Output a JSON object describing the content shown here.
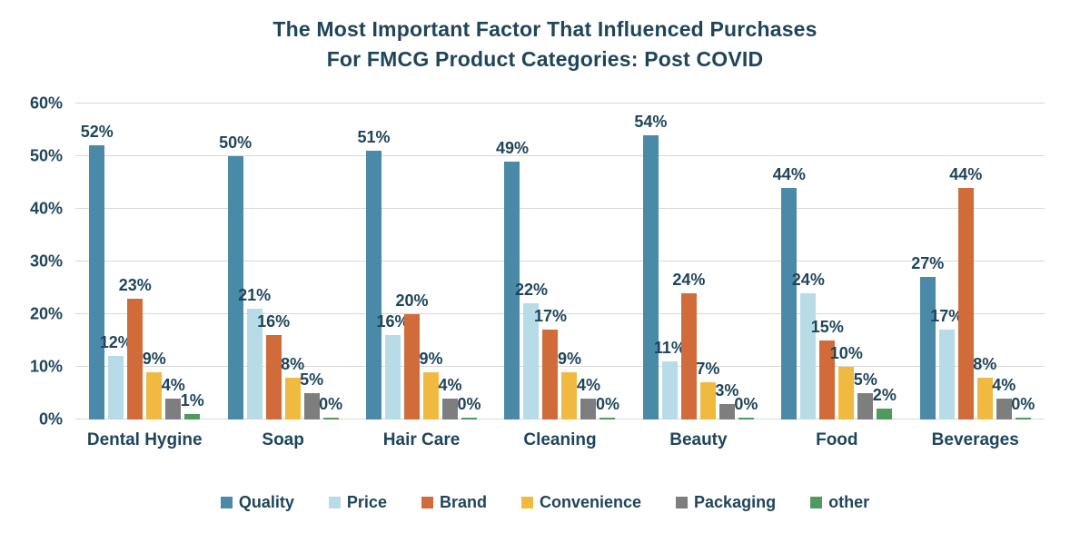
{
  "title": {
    "line1": "The Most Important Factor That Influenced Purchases",
    "line2": "For FMCG Product Categories: Post COVID"
  },
  "colors": {
    "text": "#1F455A",
    "gridline": "#D8D8D8",
    "background": "#FFFFFF"
  },
  "chart_data": {
    "type": "bar",
    "title": "The Most Important Factor That Influenced Purchases For FMCG Product Categories: Post COVID",
    "categories": [
      "Dental Hygine",
      "Soap",
      "Hair Care",
      "Cleaning",
      "Beauty",
      "Food",
      "Beverages"
    ],
    "series": [
      {
        "name": "Quality",
        "color": "#4A89A8",
        "values": [
          52,
          50,
          51,
          49,
          54,
          44,
          27
        ]
      },
      {
        "name": "Price",
        "color": "#B8DBE8",
        "values": [
          12,
          21,
          16,
          22,
          11,
          24,
          17
        ]
      },
      {
        "name": "Brand",
        "color": "#D26B3A",
        "values": [
          23,
          16,
          20,
          17,
          24,
          15,
          44
        ]
      },
      {
        "name": "Convenience",
        "color": "#F0B93F",
        "values": [
          9,
          8,
          9,
          9,
          7,
          10,
          8
        ]
      },
      {
        "name": "Packaging",
        "color": "#7E7E7E",
        "values": [
          4,
          5,
          4,
          4,
          3,
          5,
          4
        ]
      },
      {
        "name": "other",
        "color": "#4F9B5F",
        "values": [
          1,
          0,
          0,
          0,
          0,
          2,
          0
        ]
      }
    ],
    "value_label_suffix": "%",
    "xlabel": "",
    "ylabel": "",
    "ylim": [
      0,
      60
    ],
    "ytick_step": 10,
    "ytick_labels": [
      "0%",
      "10%",
      "20%",
      "30%",
      "40%",
      "50%",
      "60%"
    ],
    "grid": true,
    "legend_position": "bottom"
  }
}
